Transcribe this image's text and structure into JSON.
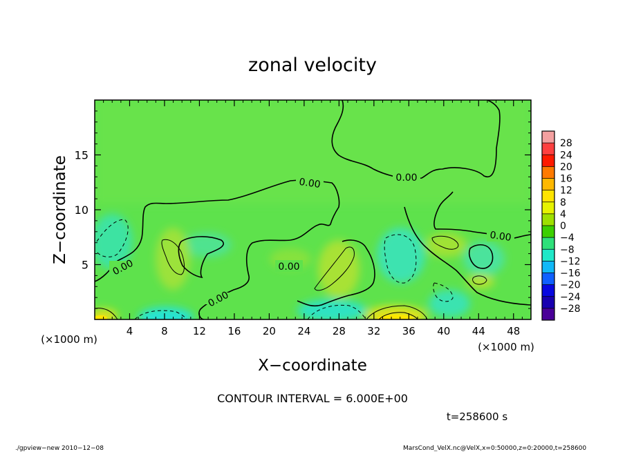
{
  "chart_data": {
    "type": "heatmap",
    "title": "zonal velocity",
    "xlabel": "X−coordinate",
    "ylabel": "Z−coordinate",
    "x_unit_label": "(×1000 m)",
    "y_unit_label": "(×1000 m)",
    "xlim": [
      0,
      50
    ],
    "ylim": [
      0,
      20
    ],
    "x_ticks": [
      4,
      8,
      12,
      16,
      20,
      24,
      28,
      32,
      36,
      40,
      44,
      48
    ],
    "y_ticks": [
      5,
      10,
      15
    ],
    "contour_interval_text": "CONTOUR INTERVAL = 6.000E+00",
    "contour_labels": [
      "0.00",
      "0.00",
      "0.00",
      "0.00",
      "0.00",
      "0.00"
    ],
    "colorbar": {
      "levels": [
        28,
        24,
        20,
        16,
        12,
        8,
        4,
        0,
        -4,
        -8,
        -12,
        -16,
        -20,
        -24,
        -28
      ],
      "labels": [
        "28",
        "24",
        "20",
        "16",
        "12",
        "8",
        "4",
        "0",
        "−4",
        "−8",
        "−12",
        "−16",
        "−20",
        "−24",
        "−28"
      ],
      "colors": [
        "#f4a0a0",
        "#ff4040",
        "#ff1a00",
        "#ff7a00",
        "#ffb800",
        "#ffe400",
        "#e6f200",
        "#9ee000",
        "#3cd000",
        "#2ee07a",
        "#20e8c8",
        "#10b8f8",
        "#1060ff",
        "#0808e0",
        "#1800b0",
        "#4a0098"
      ]
    }
  },
  "footer": {
    "time_text": "t=258600 s",
    "left_note": "./gpview−new   2010−12−08",
    "right_note": "MarsCond_VelX.nc@VelX,x=0:50000,z=0:20000,t=258600"
  }
}
